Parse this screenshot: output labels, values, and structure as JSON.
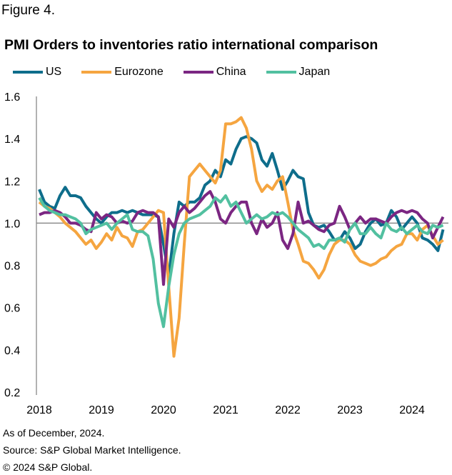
{
  "figure_label": "Figure 4.",
  "chart_data": {
    "type": "line",
    "title": "PMI Orders to inventories ratio international comparison",
    "xlabel": "",
    "ylabel": "",
    "x_start": "2018-01",
    "frequency": "monthly",
    "x_ticks": [
      "2018",
      "2019",
      "2020",
      "2021",
      "2022",
      "2023",
      "2024"
    ],
    "y_ticks": [
      "0.2",
      "0.4",
      "0.6",
      "0.8",
      "1.0",
      "1.2",
      "1.4",
      "1.6"
    ],
    "ylim": [
      0.2,
      1.6
    ],
    "reference_line": 1.0,
    "grid": false,
    "legend": "top",
    "series": [
      {
        "name": "US",
        "color": "#0e6d8b",
        "values": [
          1.16,
          1.1,
          1.08,
          1.07,
          1.13,
          1.17,
          1.13,
          1.13,
          1.12,
          1.08,
          1.05,
          1.02,
          1.0,
          1.03,
          1.05,
          1.05,
          1.06,
          1.05,
          1.06,
          1.05,
          1.04,
          1.04,
          1.04,
          1.03,
          0.9,
          0.75,
          0.95,
          1.1,
          1.08,
          1.1,
          1.1,
          1.12,
          1.18,
          1.2,
          1.25,
          1.22,
          1.3,
          1.28,
          1.35,
          1.4,
          1.41,
          1.4,
          1.38,
          1.3,
          1.27,
          1.33,
          1.25,
          1.16,
          1.2,
          1.25,
          1.22,
          1.21,
          1.05,
          0.99,
          0.98,
          0.99,
          0.96,
          0.92,
          0.92,
          0.96,
          0.93,
          0.88,
          0.9,
          0.96,
          1.0,
          1.02,
          0.99,
          1.0,
          1.06,
          1.03,
          0.97,
          1.0,
          1.03,
          1.0,
          0.93,
          0.92,
          0.9,
          0.87,
          0.97
        ]
      },
      {
        "name": "Eurozone",
        "color": "#f5a540",
        "values": [
          1.1,
          1.08,
          1.07,
          1.05,
          1.03,
          1.0,
          0.98,
          0.96,
          0.93,
          0.9,
          0.92,
          0.88,
          0.91,
          0.95,
          0.92,
          0.98,
          0.94,
          0.93,
          0.89,
          0.96,
          0.97,
          1.0,
          1.03,
          1.06,
          1.05,
          0.7,
          0.37,
          0.55,
          0.9,
          1.22,
          1.25,
          1.28,
          1.25,
          1.22,
          1.19,
          1.25,
          1.47,
          1.47,
          1.48,
          1.5,
          1.45,
          1.35,
          1.2,
          1.15,
          1.18,
          1.16,
          1.2,
          1.22,
          1.1,
          0.97,
          0.9,
          0.82,
          0.81,
          0.78,
          0.74,
          0.78,
          0.85,
          0.9,
          0.92,
          0.92,
          0.9,
          0.85,
          0.82,
          0.81,
          0.8,
          0.81,
          0.83,
          0.84,
          0.87,
          0.89,
          0.9,
          0.95,
          0.95,
          0.92,
          0.97,
          0.99,
          0.94,
          0.9,
          0.92
        ]
      },
      {
        "name": "China",
        "color": "#7b2682",
        "values": [
          1.04,
          1.05,
          1.05,
          1.06,
          1.05,
          1.03,
          1.0,
          1.0,
          0.99,
          0.97,
          0.96,
          1.05,
          1.02,
          1.04,
          1.03,
          1.0,
          1.01,
          1.0,
          1.01,
          1.05,
          1.06,
          1.05,
          1.05,
          1.03,
          0.71,
          1.02,
          0.98,
          1.05,
          1.08,
          1.05,
          1.07,
          1.1,
          1.13,
          1.15,
          1.1,
          1.02,
          1.0,
          1.05,
          1.08,
          1.1,
          1.1,
          1.0,
          0.95,
          1.02,
          0.98,
          1.0,
          1.05,
          0.92,
          0.88,
          0.95,
          1.1,
          1.0,
          1.01,
          0.99,
          0.97,
          0.96,
          0.99,
          1.0,
          1.08,
          1.03,
          0.97,
          1.0,
          1.03,
          1.0,
          1.02,
          1.02,
          1.01,
          1.0,
          1.03,
          1.05,
          1.06,
          1.05,
          1.06,
          1.05,
          1.02,
          1.0,
          0.93,
          0.98,
          1.03
        ]
      },
      {
        "name": "Japan",
        "color": "#52c0a0",
        "values": [
          1.12,
          1.08,
          1.06,
          1.05,
          1.04,
          1.04,
          1.03,
          1.02,
          1.0,
          0.95,
          0.97,
          0.98,
          0.99,
          1.0,
          0.97,
          1.0,
          1.02,
          1.04,
          0.97,
          0.96,
          0.96,
          0.94,
          0.83,
          0.62,
          0.51,
          0.7,
          0.85,
          0.95,
          1.0,
          1.02,
          1.03,
          1.04,
          1.06,
          1.08,
          1.12,
          1.1,
          1.13,
          1.08,
          1.1,
          1.05,
          1.0,
          1.02,
          1.04,
          1.02,
          1.03,
          1.05,
          1.04,
          1.05,
          1.03,
          1.0,
          0.97,
          0.95,
          0.93,
          0.89,
          0.9,
          0.88,
          0.92,
          0.92,
          0.93,
          0.91,
          0.97,
          1.0,
          0.95,
          0.95,
          0.98,
          0.95,
          0.93,
          1.0,
          0.97,
          0.96,
          0.98,
          0.95,
          0.97,
          0.99,
          0.96,
          0.95,
          0.99,
          0.98,
          0.99
        ]
      }
    ]
  },
  "footer": {
    "asof": "As of December, 2024.",
    "source": "Source: S&P Global Market Intelligence.",
    "copyright": "© 2024 S&P Global."
  }
}
